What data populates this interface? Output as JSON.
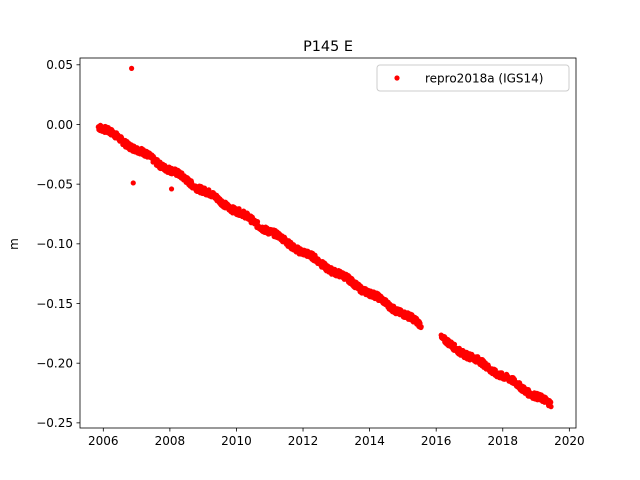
{
  "chart_data": {
    "type": "scatter",
    "title": "P145 E",
    "xlabel": "",
    "ylabel": "m",
    "xlim": [
      2005.3,
      2020.2
    ],
    "ylim": [
      -0.2543,
      0.0557
    ],
    "x_ticks": [
      2006,
      2008,
      2010,
      2012,
      2014,
      2016,
      2018,
      2020
    ],
    "x_tick_labels": [
      "2006",
      "2008",
      "2010",
      "2012",
      "2014",
      "2016",
      "2018",
      "2020"
    ],
    "y_ticks": [
      0.05,
      0.0,
      -0.05,
      -0.1,
      -0.15,
      -0.2,
      -0.25
    ],
    "y_tick_labels": [
      "0.05",
      "0.00",
      "−0.05",
      "−0.10",
      "−0.15",
      "−0.20",
      "−0.25"
    ],
    "grid": false,
    "legend_position": "top-right",
    "series": [
      {
        "name": "repro2018a (IGS14)",
        "color": "#ff0000",
        "marker": "dot",
        "trend": [
          {
            "x": 2005.85,
            "y": -0.001
          },
          {
            "x": 2015.55,
            "y": -0.168
          },
          {
            "gap": true
          },
          {
            "x": 2016.15,
            "y": -0.18
          },
          {
            "x": 2019.45,
            "y": -0.235
          }
        ],
        "outliers": [
          {
            "x": 2006.85,
            "y": 0.047
          },
          {
            "x": 2006.9,
            "y": -0.049
          },
          {
            "x": 2008.05,
            "y": -0.054
          }
        ]
      }
    ]
  }
}
